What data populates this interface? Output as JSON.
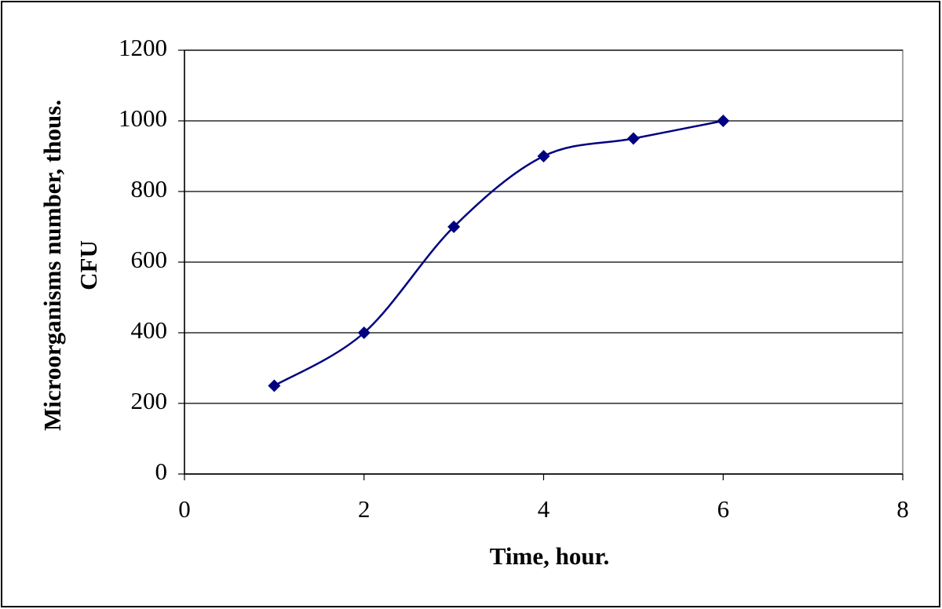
{
  "chart_data": {
    "type": "line",
    "xlabel": "Time, hour.",
    "ylabel": [
      "Microorganisms number, thous.",
      "CFU"
    ],
    "x": [
      1,
      2,
      3,
      4,
      5,
      6
    ],
    "series": [
      {
        "color": "#000080",
        "values": [
          250,
          400,
          700,
          900,
          950,
          1000
        ]
      }
    ],
    "xlim": [
      0,
      8
    ],
    "xticks": [
      0,
      2,
      4,
      6,
      8
    ],
    "ylim": [
      0,
      1200
    ],
    "yticks": [
      0,
      200,
      400,
      600,
      800,
      1000,
      1200
    ],
    "grid": true,
    "smooth": true,
    "marker": "diamond"
  }
}
